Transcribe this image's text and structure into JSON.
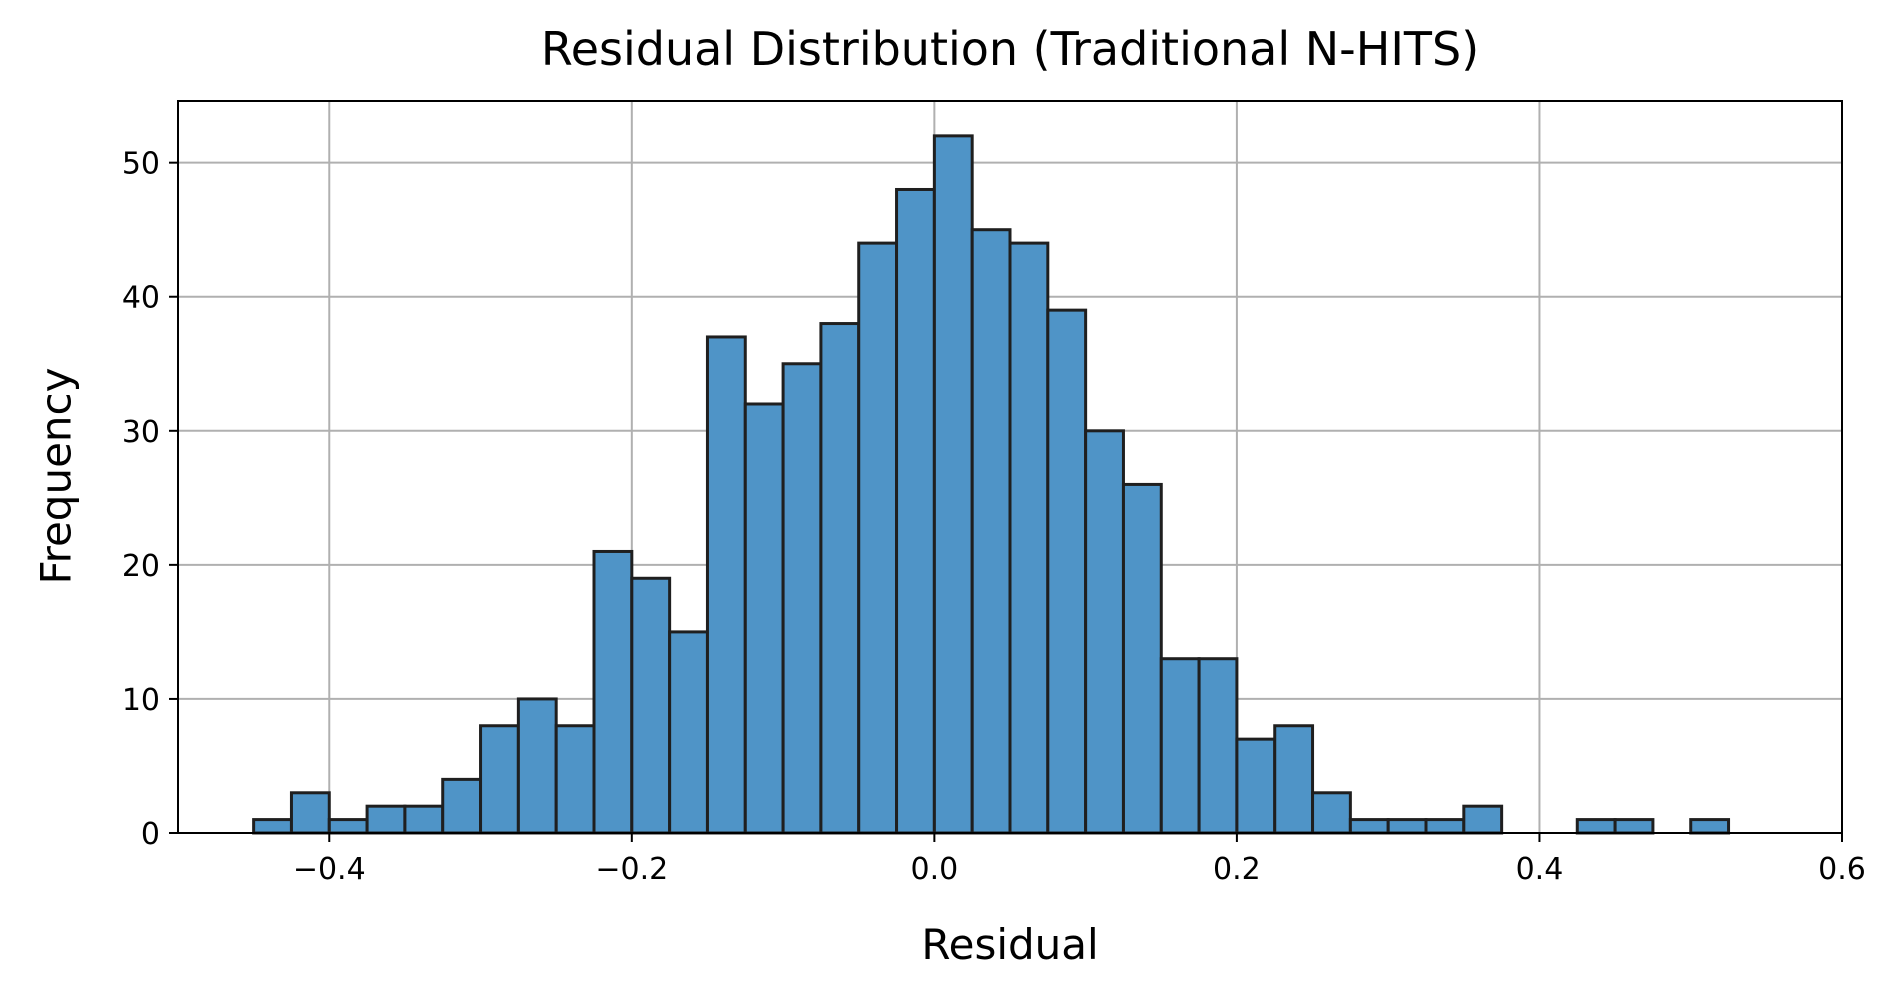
{
  "chart_data": {
    "type": "bar",
    "title": "Residual Distribution (Traditional N-HITS)",
    "xlabel": "Residual",
    "ylabel": "Frequency",
    "xlim": [
      -0.5,
      0.6
    ],
    "ylim": [
      0,
      54.6
    ],
    "xticks": [
      -0.4,
      -0.2,
      0.0,
      0.2,
      0.4,
      0.6
    ],
    "xtick_labels": [
      "−0.4",
      "−0.2",
      "0.0",
      "0.2",
      "0.4",
      "0.6"
    ],
    "yticks": [
      0,
      10,
      20,
      30,
      40,
      50
    ],
    "ytick_labels": [
      "0",
      "10",
      "20",
      "30",
      "40",
      "50"
    ],
    "grid": true,
    "colors": {
      "bar_fill": "#4f94c7",
      "bar_edge": "#1f1f1f",
      "grid": "#b0b0b0"
    },
    "bin_start": -0.45,
    "bin_width": 0.025,
    "values": [
      1,
      3,
      1,
      2,
      2,
      4,
      8,
      10,
      8,
      21,
      19,
      15,
      37,
      32,
      35,
      38,
      44,
      48,
      52,
      45,
      44,
      39,
      30,
      26,
      13,
      13,
      7,
      8,
      3,
      1,
      1,
      1,
      2,
      0,
      0,
      1,
      1,
      0,
      1
    ]
  }
}
